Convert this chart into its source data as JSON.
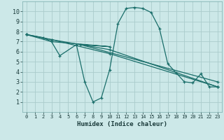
{
  "background_color": "#cce8e8",
  "grid_color": "#aacccc",
  "line_color": "#1a6e6a",
  "xlabel": "Humidex (Indice chaleur)",
  "xlim": [
    -0.5,
    23.5
  ],
  "ylim": [
    0,
    11
  ],
  "xticks": [
    0,
    1,
    2,
    3,
    4,
    5,
    6,
    7,
    8,
    9,
    10,
    11,
    12,
    13,
    14,
    15,
    16,
    17,
    18,
    19,
    20,
    21,
    22,
    23
  ],
  "yticks": [
    1,
    2,
    3,
    4,
    5,
    6,
    7,
    8,
    9,
    10
  ],
  "series": [
    {
      "x": [
        0,
        2,
        3,
        4,
        6,
        7,
        8,
        9,
        10,
        11,
        12,
        13,
        14,
        15,
        16,
        17,
        18,
        19,
        20,
        21,
        22,
        23
      ],
      "y": [
        7.7,
        7.4,
        7.0,
        5.6,
        6.7,
        3.0,
        1.0,
        1.4,
        4.2,
        8.8,
        10.3,
        10.4,
        10.3,
        9.9,
        8.3,
        4.8,
        3.9,
        3.0,
        2.9,
        3.8,
        2.5,
        2.5
      ]
    },
    {
      "x": [
        0,
        3,
        10,
        23
      ],
      "y": [
        7.7,
        7.2,
        6.2,
        2.5
      ]
    },
    {
      "x": [
        0,
        3,
        10,
        6.5,
        23
      ],
      "y": [
        7.7,
        7.0,
        6.5,
        6.7,
        3.0
      ]
    },
    {
      "x": [
        0,
        3,
        10,
        23
      ],
      "y": [
        7.7,
        7.2,
        5.8,
        2.5
      ]
    }
  ]
}
